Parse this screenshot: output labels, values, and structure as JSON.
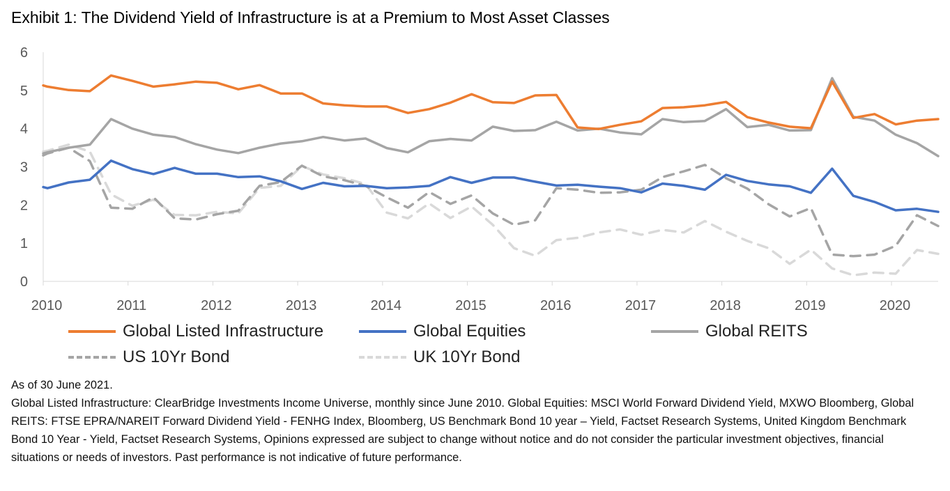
{
  "title": "Exhibit 1: The Dividend Yield of Infrastructure is at a Premium to Most Asset Classes",
  "chart_data": {
    "type": "line",
    "title": "Exhibit 1: The Dividend Yield of Infrastructure is at a Premium to Most Asset Classes",
    "xlabel": "",
    "ylabel": "",
    "xlim": [
      2010,
      2020.55
    ],
    "ylim": [
      0,
      6
    ],
    "yticks": [
      "0",
      "1",
      "2",
      "3",
      "4",
      "5",
      "6"
    ],
    "xticks": [
      "2010",
      "2011",
      "2012",
      "2013",
      "2014",
      "2015",
      "2016",
      "2017",
      "2018",
      "2019",
      "2020"
    ],
    "grid": false,
    "legend_position": "bottom",
    "x": [
      2010.0,
      2010.05,
      2010.3,
      2010.55,
      2010.8,
      2011.05,
      2011.3,
      2011.55,
      2011.8,
      2012.05,
      2012.3,
      2012.55,
      2012.8,
      2013.05,
      2013.3,
      2013.55,
      2013.8,
      2014.05,
      2014.3,
      2014.55,
      2014.8,
      2015.05,
      2015.3,
      2015.55,
      2015.8,
      2016.05,
      2016.3,
      2016.55,
      2016.8,
      2017.05,
      2017.3,
      2017.55,
      2017.8,
      2018.05,
      2018.3,
      2018.55,
      2018.8,
      2019.05,
      2019.3,
      2019.55,
      2019.8,
      2020.05,
      2020.3,
      2020.55
    ],
    "series": [
      {
        "name": "Global Listed Infrastructure",
        "color": "#ed7d31",
        "dash": "solid",
        "values": [
          5.13,
          5.1,
          5.01,
          4.98,
          5.39,
          5.25,
          5.1,
          5.16,
          5.23,
          5.2,
          5.03,
          5.14,
          4.92,
          4.92,
          4.66,
          4.61,
          4.58,
          4.58,
          4.41,
          4.51,
          4.68,
          4.9,
          4.69,
          4.67,
          4.87,
          4.88,
          4.03,
          3.99,
          4.1,
          4.19,
          4.54,
          4.56,
          4.61,
          4.7,
          4.3,
          4.16,
          4.05,
          4.01,
          5.23,
          4.28,
          4.38,
          4.11,
          4.21,
          4.25
        ]
      },
      {
        "name": "Global Equities",
        "color": "#4472c4",
        "dash": "solid",
        "values": [
          2.47,
          2.44,
          2.59,
          2.66,
          3.16,
          2.94,
          2.81,
          2.97,
          2.82,
          2.82,
          2.73,
          2.75,
          2.62,
          2.42,
          2.58,
          2.49,
          2.5,
          2.44,
          2.46,
          2.5,
          2.73,
          2.58,
          2.72,
          2.72,
          2.61,
          2.51,
          2.53,
          2.48,
          2.44,
          2.33,
          2.56,
          2.5,
          2.4,
          2.79,
          2.63,
          2.54,
          2.49,
          2.32,
          2.95,
          2.24,
          2.08,
          1.86,
          1.9,
          1.82
        ]
      },
      {
        "name": "Global REITS",
        "color": "#a5a5a5",
        "dash": "solid",
        "values": [
          3.35,
          3.38,
          3.5,
          3.58,
          4.25,
          4.0,
          3.84,
          3.78,
          3.59,
          3.45,
          3.36,
          3.5,
          3.61,
          3.67,
          3.78,
          3.69,
          3.74,
          3.49,
          3.38,
          3.67,
          3.73,
          3.69,
          4.05,
          3.94,
          3.96,
          4.18,
          3.95,
          4.0,
          3.9,
          3.85,
          4.25,
          4.17,
          4.2,
          4.51,
          4.04,
          4.1,
          3.95,
          3.96,
          5.32,
          4.31,
          4.21,
          3.84,
          3.62,
          3.28
        ]
      },
      {
        "name": "US 10Yr Bond",
        "color": "#a5a5a5",
        "dash": "dashed",
        "values": [
          3.3,
          3.35,
          3.5,
          3.15,
          1.93,
          1.9,
          2.2,
          1.65,
          1.62,
          1.76,
          1.85,
          2.5,
          2.6,
          3.03,
          2.75,
          2.65,
          2.5,
          2.2,
          1.93,
          2.34,
          2.03,
          2.25,
          1.78,
          1.48,
          1.6,
          2.44,
          2.4,
          2.32,
          2.33,
          2.4,
          2.73,
          2.88,
          3.05,
          2.7,
          2.43,
          2.02,
          1.7,
          1.92,
          0.7,
          0.66,
          0.7,
          0.93,
          1.73,
          1.45
        ]
      },
      {
        "name": "UK 10Yr Bond",
        "color": "#d9d9d9",
        "dash": "dashed",
        "values": [
          3.4,
          3.42,
          3.58,
          3.4,
          2.28,
          1.98,
          2.14,
          1.74,
          1.73,
          1.82,
          1.78,
          2.45,
          2.5,
          3.02,
          2.8,
          2.7,
          2.55,
          1.8,
          1.65,
          2.04,
          1.66,
          1.96,
          1.48,
          0.87,
          0.67,
          1.08,
          1.14,
          1.28,
          1.36,
          1.22,
          1.35,
          1.28,
          1.58,
          1.3,
          1.06,
          0.87,
          0.46,
          0.83,
          0.34,
          0.16,
          0.23,
          0.2,
          0.82,
          0.72
        ]
      }
    ]
  },
  "notes": [
    "As of 30 June 2021.",
    "Global Listed Infrastructure: ClearBridge Investments Income Universe, monthly since June 2010. Global Equities: MSCI World Forward Dividend Yield, MXWO Bloomberg, Global REITS: FTSE EPRA/NAREIT Forward Dividend Yield - FENHG Index, Bloomberg, US Benchmark Bond 10 year – Yield, Factset Research Systems, United Kingdom Benchmark Bond 10 Year - Yield, Factset Research Systems, Opinions expressed are subject to change without notice and do not consider the particular investment objectives, financial situations or needs of investors. Past performance is not indicative of future performance."
  ]
}
